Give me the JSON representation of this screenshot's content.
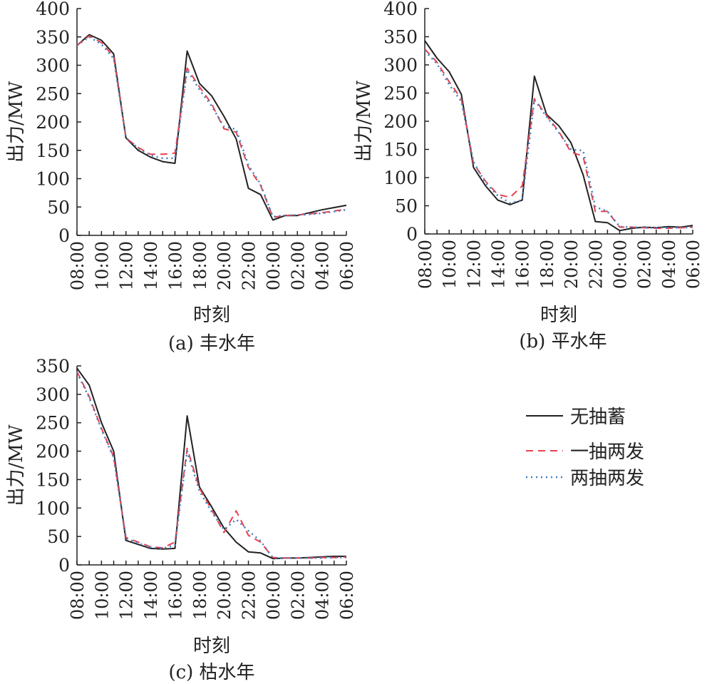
{
  "chart_data": [
    {
      "type": "line",
      "caption": "(a) 丰水年",
      "xlabel": "时刻",
      "ylabel": "出力/MW",
      "ylim": [
        0,
        400
      ],
      "yticks": [
        "0",
        "50",
        "100",
        "150",
        "200",
        "250",
        "300",
        "350",
        "400"
      ],
      "x": [
        "08:00",
        "09:00",
        "10:00",
        "11:00",
        "12:00",
        "13:00",
        "14:00",
        "15:00",
        "16:00",
        "17:00",
        "18:00",
        "19:00",
        "20:00",
        "21:00",
        "22:00",
        "23:00",
        "00:00",
        "01:00",
        "02:00",
        "03:00",
        "04:00",
        "05:00",
        "06:00"
      ],
      "xticklabels": [
        "08:00",
        "10:00",
        "12:00",
        "14:00",
        "16:00",
        "18:00",
        "20:00",
        "22:00",
        "00:00",
        "02:00",
        "04:00",
        "06:00"
      ],
      "series": [
        {
          "name": "无抽蓄",
          "color": "#222222",
          "style": "solid",
          "values": [
            335,
            354,
            344,
            320,
            172,
            150,
            138,
            130,
            127,
            325,
            268,
            246,
            210,
            170,
            83,
            72,
            27,
            35,
            35,
            40,
            45,
            49,
            53
          ]
        },
        {
          "name": "一抽两发",
          "color": "#e8414f",
          "style": "dashed",
          "values": [
            335,
            352,
            340,
            315,
            172,
            155,
            143,
            143,
            145,
            295,
            262,
            232,
            188,
            182,
            120,
            88,
            32,
            35,
            36,
            38,
            40,
            43,
            46
          ]
        },
        {
          "name": "两抽两发",
          "color": "#3f7ec2",
          "style": "dotted",
          "values": [
            335,
            350,
            337,
            312,
            172,
            154,
            141,
            136,
            136,
            292,
            257,
            228,
            192,
            187,
            124,
            90,
            33,
            35,
            36,
            37,
            39,
            42,
            45
          ]
        }
      ]
    },
    {
      "type": "line",
      "caption": "(b) 平水年",
      "xlabel": "时刻",
      "ylabel": "出力/MW",
      "ylim": [
        0,
        400
      ],
      "yticks": [
        "0",
        "50",
        "100",
        "150",
        "200",
        "250",
        "300",
        "350",
        "400"
      ],
      "x": [
        "08:00",
        "09:00",
        "10:00",
        "11:00",
        "12:00",
        "13:00",
        "14:00",
        "15:00",
        "16:00",
        "17:00",
        "18:00",
        "19:00",
        "20:00",
        "21:00",
        "22:00",
        "23:00",
        "00:00",
        "01:00",
        "02:00",
        "03:00",
        "04:00",
        "05:00",
        "06:00"
      ],
      "xticklabels": [
        "08:00",
        "10:00",
        "12:00",
        "14:00",
        "16:00",
        "18:00",
        "20:00",
        "22:00",
        "00:00",
        "02:00",
        "04:00",
        "06:00"
      ],
      "series": [
        {
          "name": "无抽蓄",
          "color": "#222222",
          "style": "solid",
          "values": [
            343,
            312,
            288,
            248,
            118,
            85,
            60,
            52,
            60,
            280,
            212,
            192,
            162,
            105,
            22,
            20,
            6,
            10,
            12,
            11,
            13,
            12,
            15
          ]
        },
        {
          "name": "一抽两发",
          "color": "#e8414f",
          "style": "dashed",
          "values": [
            328,
            305,
            270,
            240,
            125,
            93,
            70,
            65,
            85,
            240,
            210,
            182,
            145,
            138,
            40,
            40,
            12,
            12,
            11,
            10,
            10,
            11,
            12
          ]
        },
        {
          "name": "两抽两发",
          "color": "#3f7ec2",
          "style": "dotted",
          "values": [
            325,
            302,
            265,
            235,
            128,
            90,
            68,
            55,
            60,
            238,
            208,
            180,
            150,
            148,
            48,
            40,
            13,
            12,
            11,
            11,
            11,
            11,
            12
          ]
        }
      ]
    },
    {
      "type": "line",
      "caption": "(c) 枯水年",
      "xlabel": "时刻",
      "ylabel": "出力/MW",
      "ylim": [
        0,
        350
      ],
      "yticks": [
        "0",
        "50",
        "100",
        "150",
        "200",
        "250",
        "300",
        "350"
      ],
      "x": [
        "08:00",
        "09:00",
        "10:00",
        "11:00",
        "12:00",
        "13:00",
        "14:00",
        "15:00",
        "16:00",
        "17:00",
        "18:00",
        "19:00",
        "20:00",
        "21:00",
        "22:00",
        "23:00",
        "00:00",
        "01:00",
        "02:00",
        "03:00",
        "04:00",
        "05:00",
        "06:00"
      ],
      "xticklabels": [
        "08:00",
        "10:00",
        "12:00",
        "14:00",
        "16:00",
        "18:00",
        "20:00",
        "22:00",
        "00:00",
        "02:00",
        "04:00",
        "06:00"
      ],
      "series": [
        {
          "name": "无抽蓄",
          "color": "#222222",
          "style": "solid",
          "values": [
            346,
            316,
            250,
            200,
            43,
            36,
            29,
            28,
            29,
            262,
            137,
            102,
            65,
            40,
            23,
            21,
            11,
            12,
            12,
            13,
            14,
            15,
            15
          ]
        },
        {
          "name": "一抽两发",
          "color": "#e8414f",
          "style": "dashed",
          "values": [
            340,
            296,
            240,
            190,
            48,
            40,
            32,
            30,
            40,
            205,
            135,
            97,
            57,
            95,
            52,
            40,
            13,
            12,
            12,
            12,
            13,
            13,
            14
          ]
        },
        {
          "name": "两抽两发",
          "color": "#3f7ec2",
          "style": "dotted",
          "values": [
            338,
            294,
            238,
            188,
            47,
            38,
            31,
            29,
            35,
            200,
            130,
            93,
            62,
            80,
            60,
            42,
            12,
            12,
            12,
            12,
            12,
            13,
            13
          ]
        }
      ]
    }
  ],
  "legend": {
    "placement": "right",
    "items": [
      {
        "label": "无抽蓄",
        "color": "#222222",
        "style": "solid"
      },
      {
        "label": "一抽两发",
        "color": "#e8414f",
        "style": "dashed"
      },
      {
        "label": "两抽两发",
        "color": "#3f7ec2",
        "style": "dotted"
      }
    ]
  }
}
